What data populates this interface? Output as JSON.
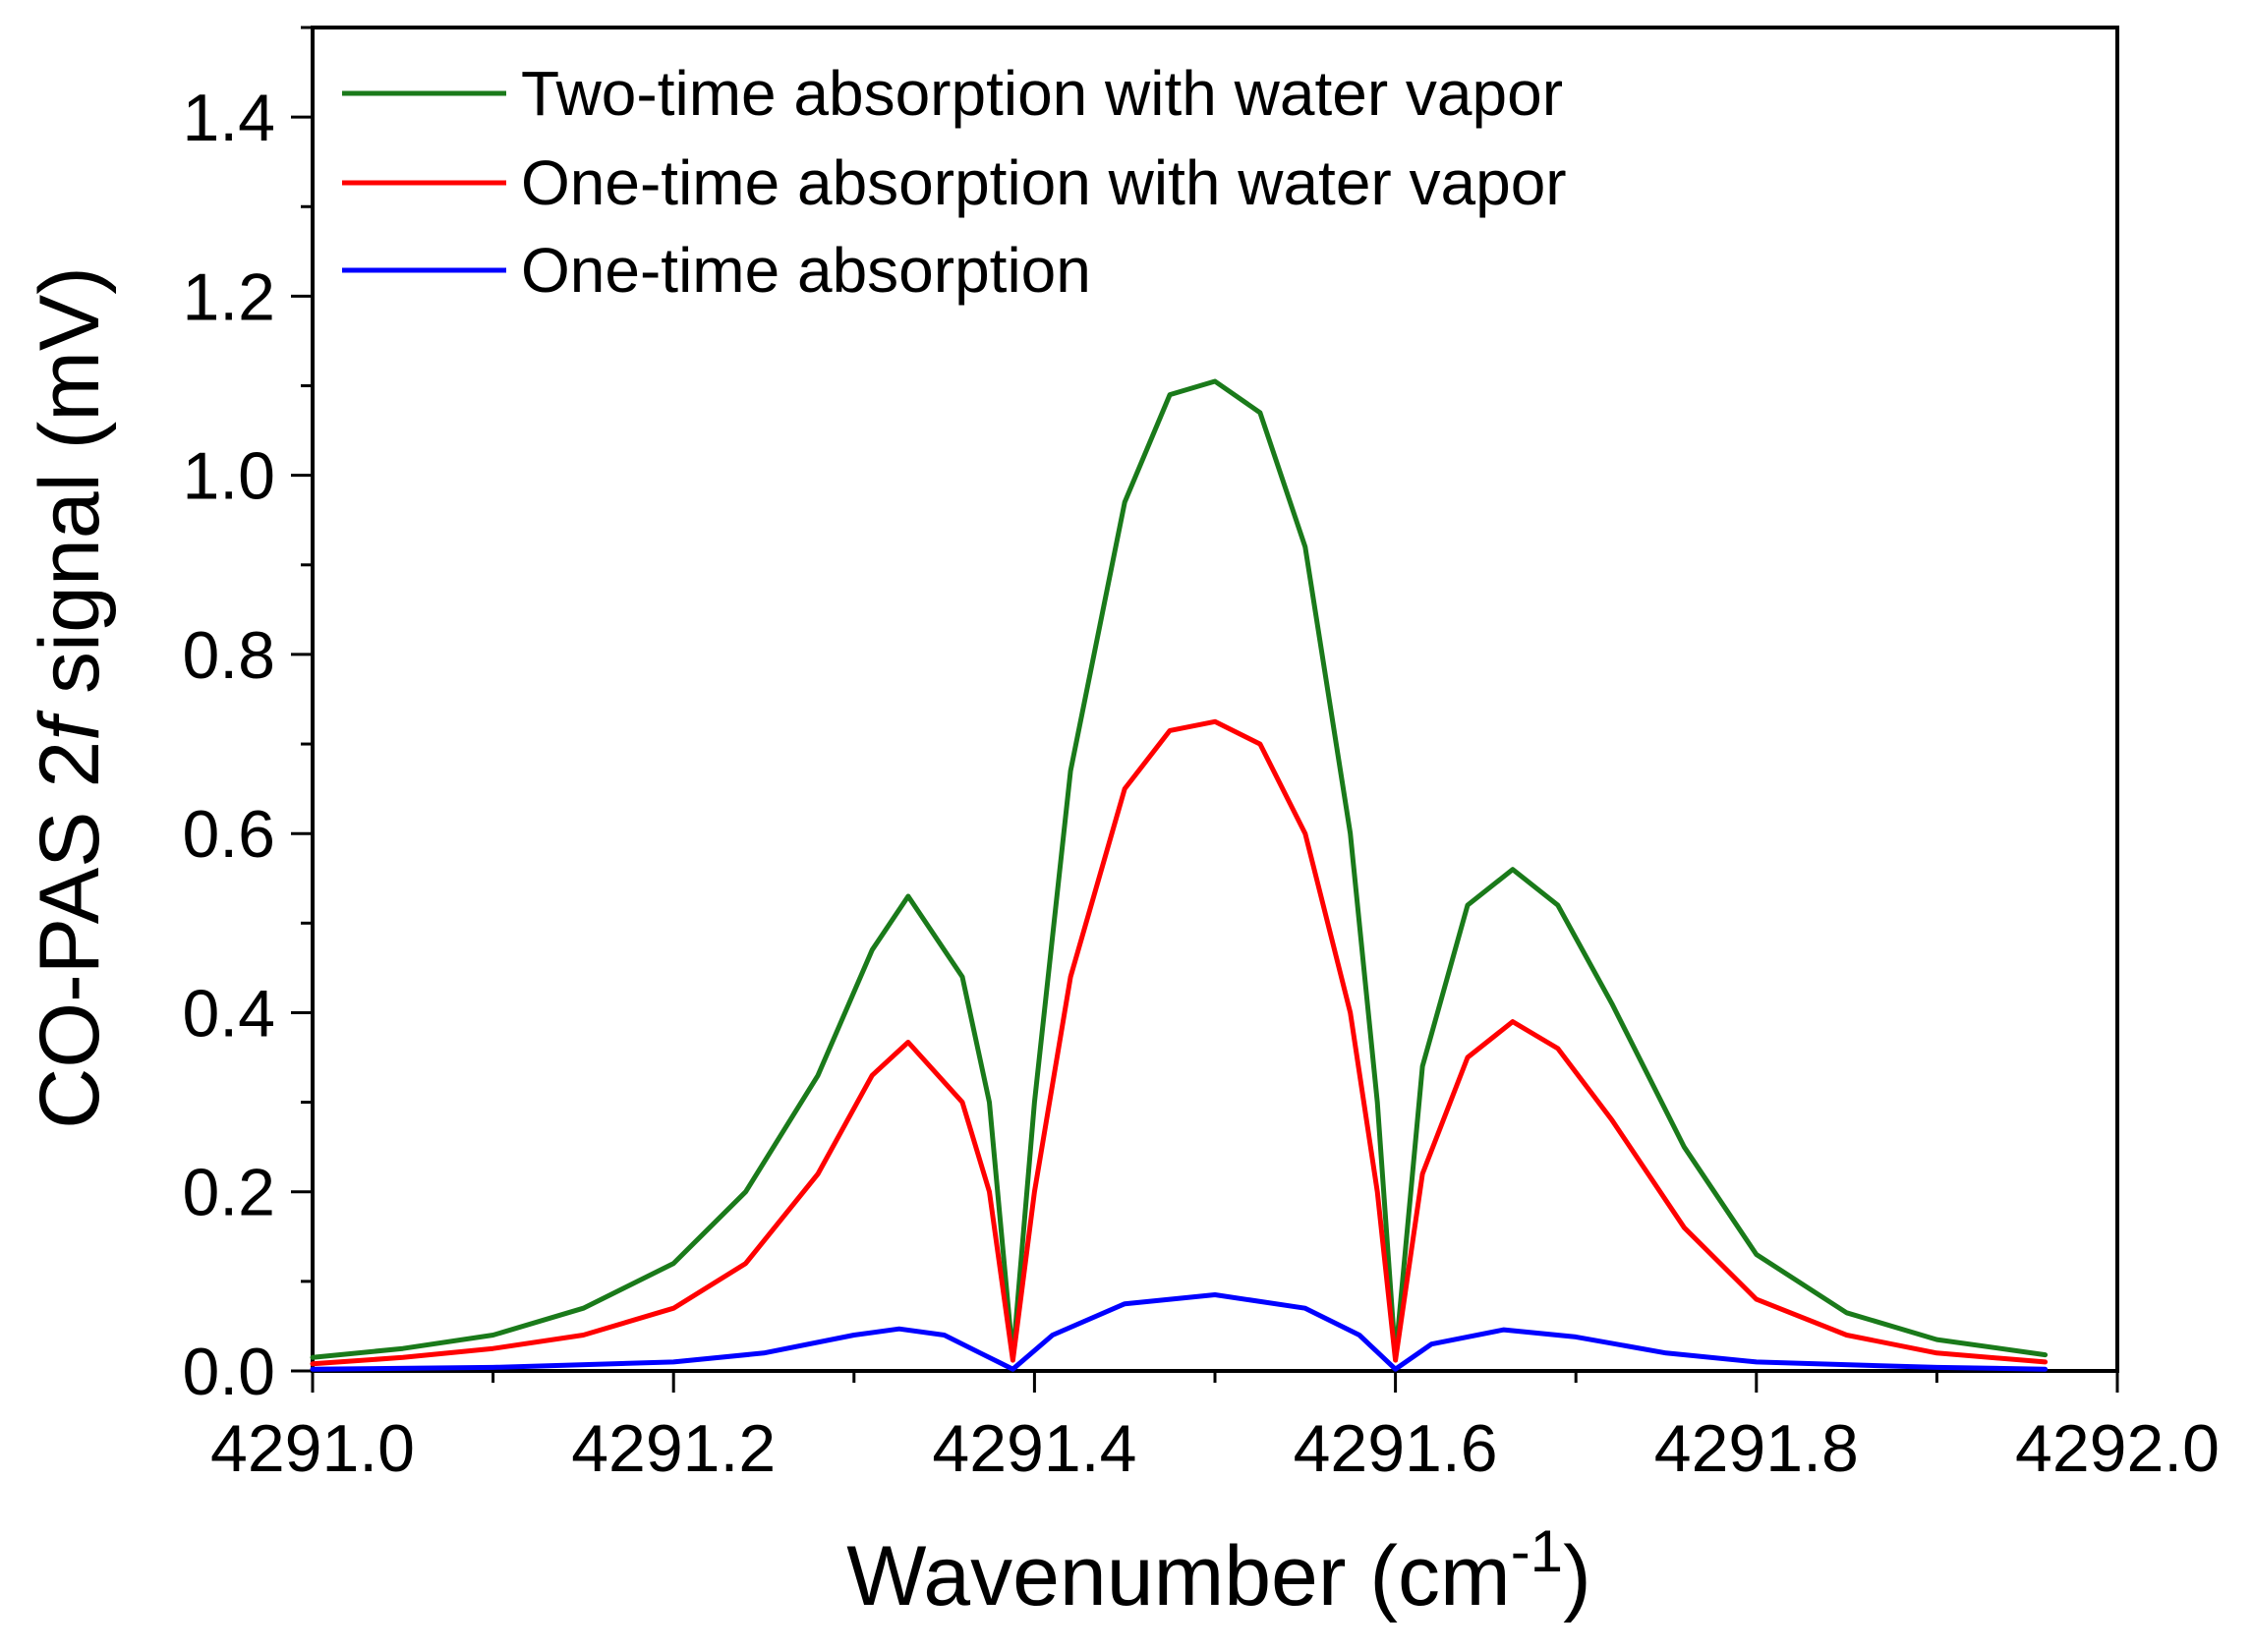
{
  "chart_data": {
    "type": "line",
    "xlabel": "Wavenumber (cm",
    "xlabel_sup": "-1",
    "xlabel_close": ")",
    "ylabel_pre": "CO-PAS 2",
    "ylabel_italic": "f",
    "ylabel_post": " signal (mV)",
    "xlim": [
      4291.0,
      4292.0
    ],
    "ylim": [
      0.0,
      1.5
    ],
    "x_ticks": [
      4291.0,
      4291.2,
      4291.4,
      4291.6,
      4291.8,
      4292.0
    ],
    "x_tick_labels": [
      "4291.0",
      "4291.2",
      "4291.4",
      "4291.6",
      "4291.8",
      "4292.0"
    ],
    "y_ticks": [
      0.0,
      0.2,
      0.4,
      0.6,
      0.8,
      1.0,
      1.2,
      1.4
    ],
    "y_tick_labels": [
      "0.0",
      "0.2",
      "0.4",
      "0.6",
      "0.8",
      "1.0",
      "1.2",
      "1.4"
    ],
    "legend_position": "top-left",
    "grid": false,
    "series": [
      {
        "name": "Two-time absorption with water vapor",
        "color": "#1a7a1a",
        "x": [
          4291.0,
          4291.05,
          4291.1,
          4291.15,
          4291.2,
          4291.24,
          4291.28,
          4291.31,
          4291.33,
          4291.36,
          4291.375,
          4291.388,
          4291.4,
          4291.42,
          4291.45,
          4291.475,
          4291.5,
          4291.525,
          4291.55,
          4291.575,
          4291.59,
          4291.6,
          4291.615,
          4291.64,
          4291.665,
          4291.69,
          4291.72,
          4291.76,
          4291.8,
          4291.85,
          4291.9,
          4291.96
        ],
        "y": [
          0.015,
          0.025,
          0.04,
          0.07,
          0.12,
          0.2,
          0.33,
          0.47,
          0.53,
          0.44,
          0.3,
          0.015,
          0.3,
          0.67,
          0.97,
          1.09,
          1.105,
          1.07,
          0.92,
          0.6,
          0.3,
          0.015,
          0.34,
          0.52,
          0.56,
          0.52,
          0.41,
          0.25,
          0.13,
          0.065,
          0.035,
          0.018
        ]
      },
      {
        "name": "One-time absorption with water vapor",
        "color": "#ff0000",
        "x": [
          4291.0,
          4291.05,
          4291.1,
          4291.15,
          4291.2,
          4291.24,
          4291.28,
          4291.31,
          4291.33,
          4291.36,
          4291.375,
          4291.388,
          4291.4,
          4291.42,
          4291.45,
          4291.475,
          4291.5,
          4291.525,
          4291.55,
          4291.575,
          4291.59,
          4291.6,
          4291.615,
          4291.64,
          4291.665,
          4291.69,
          4291.72,
          4291.76,
          4291.8,
          4291.85,
          4291.9,
          4291.96
        ],
        "y": [
          0.008,
          0.015,
          0.025,
          0.04,
          0.07,
          0.12,
          0.22,
          0.33,
          0.367,
          0.3,
          0.2,
          0.012,
          0.2,
          0.44,
          0.65,
          0.715,
          0.725,
          0.7,
          0.6,
          0.4,
          0.2,
          0.012,
          0.22,
          0.35,
          0.39,
          0.36,
          0.28,
          0.16,
          0.08,
          0.04,
          0.02,
          0.01
        ]
      },
      {
        "name": "One-time absorption",
        "color": "#0000ff",
        "x": [
          4291.0,
          4291.1,
          4291.2,
          4291.25,
          4291.3,
          4291.325,
          4291.35,
          4291.37,
          4291.388,
          4291.41,
          4291.45,
          4291.5,
          4291.55,
          4291.58,
          4291.6,
          4291.62,
          4291.66,
          4291.7,
          4291.75,
          4291.8,
          4291.9,
          4291.96
        ],
        "y": [
          0.002,
          0.004,
          0.01,
          0.02,
          0.04,
          0.047,
          0.04,
          0.02,
          0.002,
          0.04,
          0.075,
          0.085,
          0.07,
          0.04,
          0.002,
          0.03,
          0.046,
          0.038,
          0.02,
          0.01,
          0.004,
          0.002
        ]
      }
    ]
  }
}
